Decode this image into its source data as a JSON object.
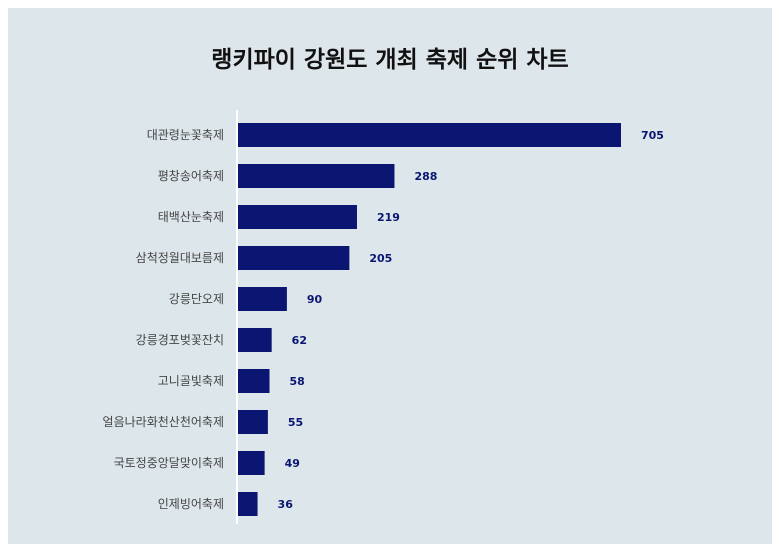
{
  "chart_data": {
    "type": "bar",
    "orientation": "horizontal",
    "title": "랭키파이 강원도 개최 축제 순위 차트",
    "categories": [
      "대관령눈꽃축제",
      "평창송어축제",
      "태백산눈축제",
      "삼척정월대보름제",
      "강릉단오제",
      "강릉경포벚꽃잔치",
      "고니골빛축제",
      "얼음나라화천산천어축제",
      "국토정중앙달맞이축제",
      "인제빙어축제"
    ],
    "values": [
      705,
      288,
      219,
      205,
      90,
      62,
      58,
      55,
      49,
      36
    ],
    "xlim": [
      0,
      705
    ],
    "grid": false,
    "legend": "none",
    "colors": {
      "bar": "#0a1672",
      "value_label": "#0a1672",
      "background": "#dde6ea",
      "axis_line": "#ffffff"
    }
  }
}
